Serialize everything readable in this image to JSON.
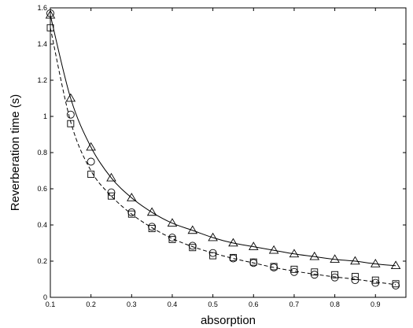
{
  "chart_data": {
    "type": "line",
    "title": "",
    "xlabel": "absorption",
    "ylabel": "Reverberation time (s)",
    "xlim": [
      0.1,
      0.975
    ],
    "ylim": [
      0,
      1.6
    ],
    "xticks": [
      "0.1",
      "0.2",
      "0.3",
      "0.4",
      "0.5",
      "0.6",
      "0.7",
      "0.8",
      "0.9"
    ],
    "xtick_values": [
      0.1,
      0.2,
      0.3,
      0.4,
      0.5,
      0.6,
      0.7,
      0.8,
      0.9
    ],
    "yticks": [
      "0",
      "0.2",
      "0.4",
      "0.6",
      "0.8",
      "1",
      "1.2",
      "1.4",
      "1.6"
    ],
    "ytick_values": [
      0,
      0.2,
      0.4,
      0.6,
      0.8,
      1.0,
      1.2,
      1.4,
      1.6
    ],
    "grid": false,
    "legend": "none",
    "colors": {
      "ink": "#000000",
      "background": "#ffffff"
    },
    "x": [
      0.1,
      0.15,
      0.2,
      0.25,
      0.3,
      0.35,
      0.4,
      0.45,
      0.5,
      0.55,
      0.6,
      0.65,
      0.7,
      0.75,
      0.8,
      0.85,
      0.9,
      0.95
    ],
    "series": [
      {
        "marker": "triangle",
        "values": [
          1.56,
          1.1,
          0.83,
          0.66,
          0.55,
          0.47,
          0.41,
          0.37,
          0.33,
          0.3,
          0.28,
          0.26,
          0.24,
          0.225,
          0.21,
          0.2,
          0.185,
          0.175
        ]
      },
      {
        "marker": "circle",
        "values": [
          1.57,
          1.01,
          0.75,
          0.58,
          0.47,
          0.39,
          0.33,
          0.285,
          0.245,
          0.215,
          0.19,
          0.165,
          0.14,
          0.125,
          0.11,
          0.095,
          0.08,
          0.065
        ]
      },
      {
        "marker": "square",
        "values": [
          1.49,
          0.96,
          0.68,
          0.56,
          0.46,
          0.38,
          0.32,
          0.275,
          0.23,
          0.22,
          0.195,
          0.17,
          0.155,
          0.14,
          0.125,
          0.115,
          0.095,
          0.075
        ]
      }
    ],
    "lines": [
      {
        "style": "solid",
        "x": [
          0.1,
          0.15,
          0.2,
          0.25,
          0.3,
          0.35,
          0.4,
          0.45,
          0.5,
          0.55,
          0.6,
          0.65,
          0.7,
          0.75,
          0.8,
          0.85,
          0.9,
          0.95
        ],
        "values": [
          1.56,
          1.1,
          0.83,
          0.66,
          0.55,
          0.47,
          0.41,
          0.37,
          0.33,
          0.3,
          0.28,
          0.26,
          0.24,
          0.225,
          0.21,
          0.2,
          0.185,
          0.175
        ]
      },
      {
        "style": "dashed",
        "x": [
          0.1,
          0.15,
          0.2,
          0.25,
          0.3,
          0.35,
          0.4,
          0.45,
          0.5,
          0.55,
          0.6,
          0.65,
          0.7,
          0.75,
          0.8,
          0.85,
          0.9,
          0.95
        ],
        "values": [
          1.49,
          0.97,
          0.7,
          0.56,
          0.46,
          0.385,
          0.325,
          0.28,
          0.245,
          0.215,
          0.19,
          0.165,
          0.145,
          0.128,
          0.113,
          0.1,
          0.085,
          0.07
        ]
      }
    ]
  }
}
